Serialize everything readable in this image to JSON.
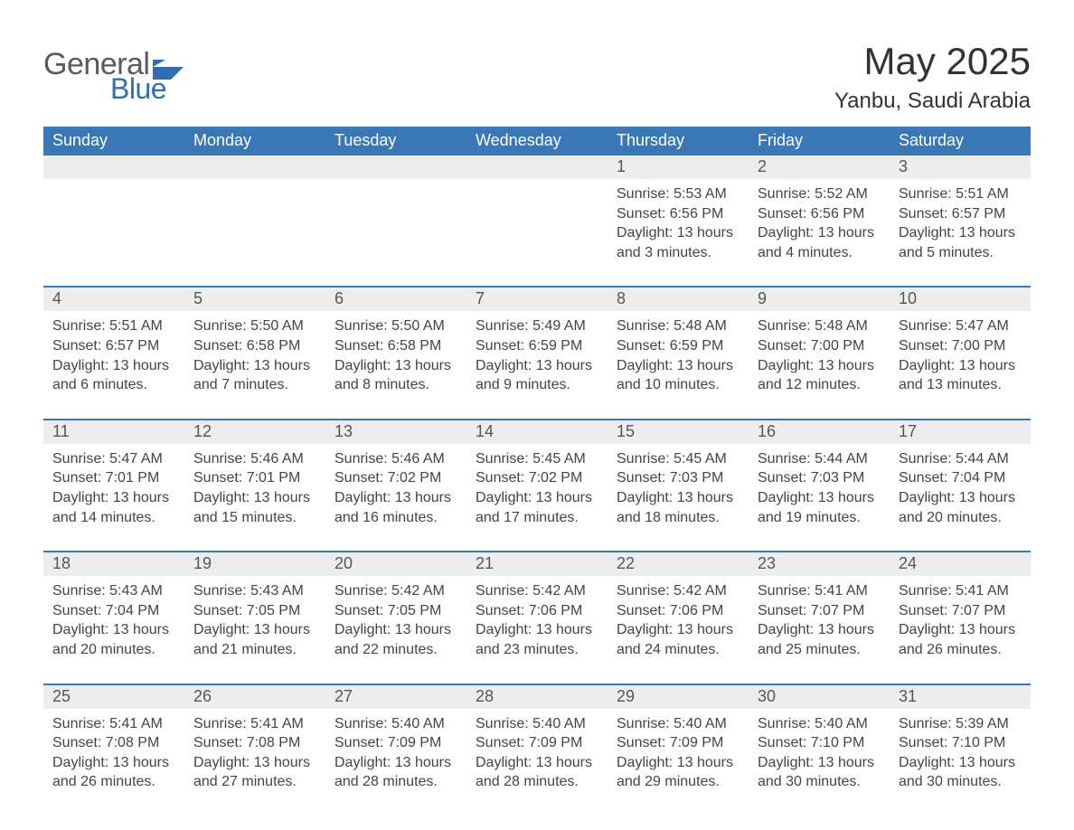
{
  "logo": {
    "word1": "General",
    "word2": "Blue"
  },
  "title": "May 2025",
  "location": "Yanbu, Saudi Arabia",
  "colors": {
    "header_bg": "#3a77b7",
    "header_text": "#ffffff",
    "daynum_bg": "#ededed",
    "rule": "#3a77b7",
    "body_text": "#444444",
    "page_bg": "#ffffff",
    "logo_grey": "#5a5a5a",
    "logo_blue": "#2e6fb0"
  },
  "typography": {
    "title_fontsize": 42,
    "location_fontsize": 24,
    "dow_fontsize": 18,
    "daynum_fontsize": 18,
    "cell_fontsize": 16
  },
  "days_of_week": [
    "Sunday",
    "Monday",
    "Tuesday",
    "Wednesday",
    "Thursday",
    "Friday",
    "Saturday"
  ],
  "weeks": [
    [
      null,
      null,
      null,
      null,
      {
        "n": "1",
        "sunrise": "Sunrise: 5:53 AM",
        "sunset": "Sunset: 6:56 PM",
        "dl1": "Daylight: 13 hours",
        "dl2": "and 3 minutes."
      },
      {
        "n": "2",
        "sunrise": "Sunrise: 5:52 AM",
        "sunset": "Sunset: 6:56 PM",
        "dl1": "Daylight: 13 hours",
        "dl2": "and 4 minutes."
      },
      {
        "n": "3",
        "sunrise": "Sunrise: 5:51 AM",
        "sunset": "Sunset: 6:57 PM",
        "dl1": "Daylight: 13 hours",
        "dl2": "and 5 minutes."
      }
    ],
    [
      {
        "n": "4",
        "sunrise": "Sunrise: 5:51 AM",
        "sunset": "Sunset: 6:57 PM",
        "dl1": "Daylight: 13 hours",
        "dl2": "and 6 minutes."
      },
      {
        "n": "5",
        "sunrise": "Sunrise: 5:50 AM",
        "sunset": "Sunset: 6:58 PM",
        "dl1": "Daylight: 13 hours",
        "dl2": "and 7 minutes."
      },
      {
        "n": "6",
        "sunrise": "Sunrise: 5:50 AM",
        "sunset": "Sunset: 6:58 PM",
        "dl1": "Daylight: 13 hours",
        "dl2": "and 8 minutes."
      },
      {
        "n": "7",
        "sunrise": "Sunrise: 5:49 AM",
        "sunset": "Sunset: 6:59 PM",
        "dl1": "Daylight: 13 hours",
        "dl2": "and 9 minutes."
      },
      {
        "n": "8",
        "sunrise": "Sunrise: 5:48 AM",
        "sunset": "Sunset: 6:59 PM",
        "dl1": "Daylight: 13 hours",
        "dl2": "and 10 minutes."
      },
      {
        "n": "9",
        "sunrise": "Sunrise: 5:48 AM",
        "sunset": "Sunset: 7:00 PM",
        "dl1": "Daylight: 13 hours",
        "dl2": "and 12 minutes."
      },
      {
        "n": "10",
        "sunrise": "Sunrise: 5:47 AM",
        "sunset": "Sunset: 7:00 PM",
        "dl1": "Daylight: 13 hours",
        "dl2": "and 13 minutes."
      }
    ],
    [
      {
        "n": "11",
        "sunrise": "Sunrise: 5:47 AM",
        "sunset": "Sunset: 7:01 PM",
        "dl1": "Daylight: 13 hours",
        "dl2": "and 14 minutes."
      },
      {
        "n": "12",
        "sunrise": "Sunrise: 5:46 AM",
        "sunset": "Sunset: 7:01 PM",
        "dl1": "Daylight: 13 hours",
        "dl2": "and 15 minutes."
      },
      {
        "n": "13",
        "sunrise": "Sunrise: 5:46 AM",
        "sunset": "Sunset: 7:02 PM",
        "dl1": "Daylight: 13 hours",
        "dl2": "and 16 minutes."
      },
      {
        "n": "14",
        "sunrise": "Sunrise: 5:45 AM",
        "sunset": "Sunset: 7:02 PM",
        "dl1": "Daylight: 13 hours",
        "dl2": "and 17 minutes."
      },
      {
        "n": "15",
        "sunrise": "Sunrise: 5:45 AM",
        "sunset": "Sunset: 7:03 PM",
        "dl1": "Daylight: 13 hours",
        "dl2": "and 18 minutes."
      },
      {
        "n": "16",
        "sunrise": "Sunrise: 5:44 AM",
        "sunset": "Sunset: 7:03 PM",
        "dl1": "Daylight: 13 hours",
        "dl2": "and 19 minutes."
      },
      {
        "n": "17",
        "sunrise": "Sunrise: 5:44 AM",
        "sunset": "Sunset: 7:04 PM",
        "dl1": "Daylight: 13 hours",
        "dl2": "and 20 minutes."
      }
    ],
    [
      {
        "n": "18",
        "sunrise": "Sunrise: 5:43 AM",
        "sunset": "Sunset: 7:04 PM",
        "dl1": "Daylight: 13 hours",
        "dl2": "and 20 minutes."
      },
      {
        "n": "19",
        "sunrise": "Sunrise: 5:43 AM",
        "sunset": "Sunset: 7:05 PM",
        "dl1": "Daylight: 13 hours",
        "dl2": "and 21 minutes."
      },
      {
        "n": "20",
        "sunrise": "Sunrise: 5:42 AM",
        "sunset": "Sunset: 7:05 PM",
        "dl1": "Daylight: 13 hours",
        "dl2": "and 22 minutes."
      },
      {
        "n": "21",
        "sunrise": "Sunrise: 5:42 AM",
        "sunset": "Sunset: 7:06 PM",
        "dl1": "Daylight: 13 hours",
        "dl2": "and 23 minutes."
      },
      {
        "n": "22",
        "sunrise": "Sunrise: 5:42 AM",
        "sunset": "Sunset: 7:06 PM",
        "dl1": "Daylight: 13 hours",
        "dl2": "and 24 minutes."
      },
      {
        "n": "23",
        "sunrise": "Sunrise: 5:41 AM",
        "sunset": "Sunset: 7:07 PM",
        "dl1": "Daylight: 13 hours",
        "dl2": "and 25 minutes."
      },
      {
        "n": "24",
        "sunrise": "Sunrise: 5:41 AM",
        "sunset": "Sunset: 7:07 PM",
        "dl1": "Daylight: 13 hours",
        "dl2": "and 26 minutes."
      }
    ],
    [
      {
        "n": "25",
        "sunrise": "Sunrise: 5:41 AM",
        "sunset": "Sunset: 7:08 PM",
        "dl1": "Daylight: 13 hours",
        "dl2": "and 26 minutes."
      },
      {
        "n": "26",
        "sunrise": "Sunrise: 5:41 AM",
        "sunset": "Sunset: 7:08 PM",
        "dl1": "Daylight: 13 hours",
        "dl2": "and 27 minutes."
      },
      {
        "n": "27",
        "sunrise": "Sunrise: 5:40 AM",
        "sunset": "Sunset: 7:09 PM",
        "dl1": "Daylight: 13 hours",
        "dl2": "and 28 minutes."
      },
      {
        "n": "28",
        "sunrise": "Sunrise: 5:40 AM",
        "sunset": "Sunset: 7:09 PM",
        "dl1": "Daylight: 13 hours",
        "dl2": "and 28 minutes."
      },
      {
        "n": "29",
        "sunrise": "Sunrise: 5:40 AM",
        "sunset": "Sunset: 7:09 PM",
        "dl1": "Daylight: 13 hours",
        "dl2": "and 29 minutes."
      },
      {
        "n": "30",
        "sunrise": "Sunrise: 5:40 AM",
        "sunset": "Sunset: 7:10 PM",
        "dl1": "Daylight: 13 hours",
        "dl2": "and 30 minutes."
      },
      {
        "n": "31",
        "sunrise": "Sunrise: 5:39 AM",
        "sunset": "Sunset: 7:10 PM",
        "dl1": "Daylight: 13 hours",
        "dl2": "and 30 minutes."
      }
    ]
  ]
}
